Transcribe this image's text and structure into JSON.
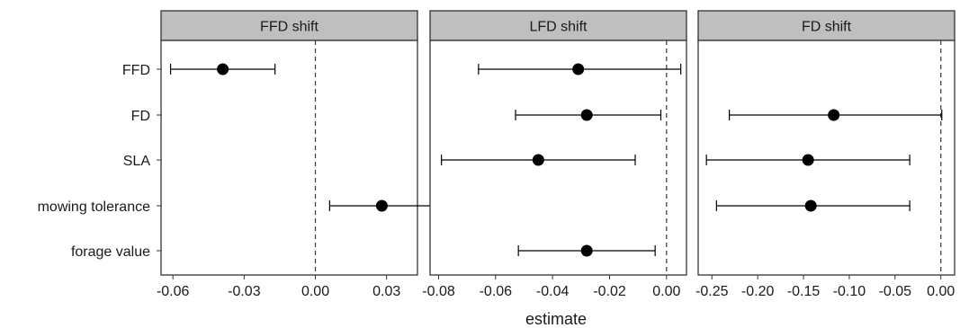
{
  "chart_data": {
    "type": "scatter",
    "subtype": "forest-plot-facets",
    "xlabel": "estimate",
    "ylabel": "",
    "categories": [
      "FFD",
      "FD",
      "SLA",
      "mowing tolerance",
      "forage value"
    ],
    "reference_line": {
      "x": 0,
      "style": "dashed"
    },
    "grid": false,
    "panels": [
      {
        "title": "FFD shift",
        "xlim": [
          -0.065,
          0.043
        ],
        "xticks": [
          -0.06,
          -0.03,
          0.0,
          0.03
        ],
        "xtick_labels": [
          "-0.06",
          "-0.03",
          "0.00",
          "0.03"
        ],
        "points": [
          {
            "category": "FFD",
            "estimate": -0.039,
            "low": -0.061,
            "high": -0.017
          },
          {
            "category": "mowing tolerance",
            "estimate": 0.028,
            "low": 0.006,
            "high": 0.051
          }
        ]
      },
      {
        "title": "LFD shift",
        "xlim": [
          -0.083,
          0.007
        ],
        "xticks": [
          -0.08,
          -0.06,
          -0.04,
          -0.02,
          0.0
        ],
        "xtick_labels": [
          "-0.08",
          "-0.06",
          "-0.04",
          "-0.02",
          "0.00"
        ],
        "points": [
          {
            "category": "FFD",
            "estimate": -0.031,
            "low": -0.066,
            "high": 0.005
          },
          {
            "category": "FD",
            "estimate": -0.028,
            "low": -0.053,
            "high": -0.002
          },
          {
            "category": "SLA",
            "estimate": -0.045,
            "low": -0.079,
            "high": -0.011
          },
          {
            "category": "forage value",
            "estimate": -0.028,
            "low": -0.052,
            "high": -0.004
          }
        ]
      },
      {
        "title": "FD shift",
        "xlim": [
          -0.265,
          0.015
        ],
        "xticks": [
          -0.25,
          -0.2,
          -0.15,
          -0.1,
          -0.05,
          0.0
        ],
        "xtick_labels": [
          "-0.25",
          "-0.20",
          "-0.15",
          "-0.10",
          "-0.05",
          "0.00"
        ],
        "points": [
          {
            "category": "FD",
            "estimate": -0.117,
            "low": -0.231,
            "high": 0.001
          },
          {
            "category": "SLA",
            "estimate": -0.145,
            "low": -0.256,
            "high": -0.034
          },
          {
            "category": "mowing tolerance",
            "estimate": -0.142,
            "low": -0.245,
            "high": -0.034
          }
        ]
      }
    ]
  }
}
